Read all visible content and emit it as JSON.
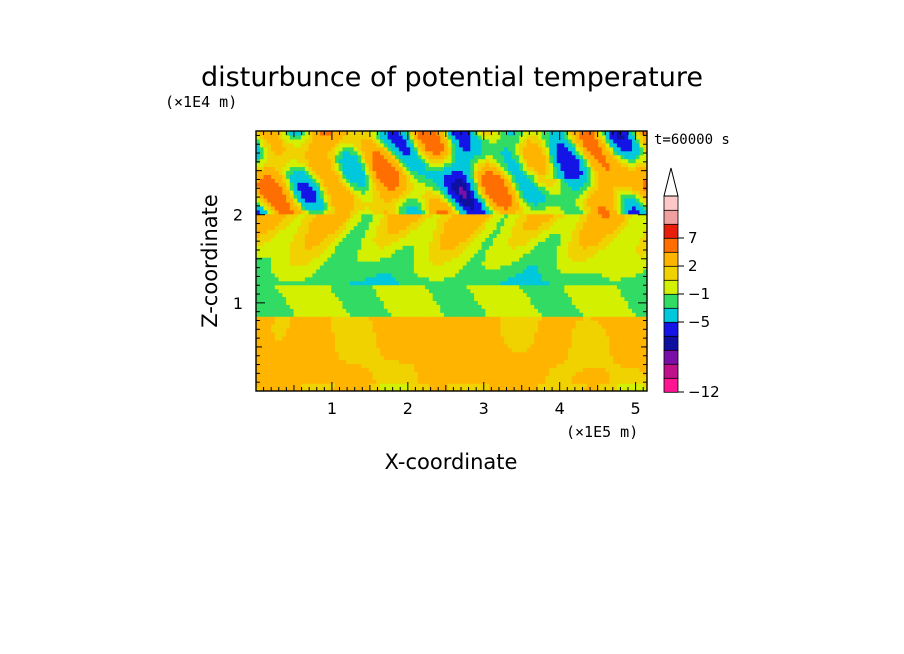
{
  "chart_data": {
    "type": "heatmap",
    "title": "disturbunce of potential temperature",
    "xlabel": "X-coordinate",
    "ylabel": "Z-coordinate",
    "x_unit": "(×1E5 m)",
    "y_unit": "(×1E4 m)",
    "time_label": "t=60000 s",
    "xlim": [
      0,
      5.15
    ],
    "ylim": [
      0,
      2.95
    ],
    "x_ticks": [
      "1",
      "2",
      "3",
      "4",
      "5"
    ],
    "y_ticks": [
      "1",
      "2"
    ],
    "colorbar": {
      "labels": [
        "7",
        "2",
        "−1",
        "−5",
        "−12"
      ],
      "colors": [
        "#ff1493",
        "#c0118c",
        "#7b10a8",
        "#1010a0",
        "#1414e6",
        "#00c8dc",
        "#32dc64",
        "#d2f000",
        "#f0d200",
        "#ffb400",
        "#ff6e00",
        "#e61e0a",
        "#f0a0a0",
        "#ffc8c8"
      ]
    },
    "field_description_rows": [
      {
        "z_range": [
          2.0,
          2.95
        ],
        "pattern": "wave",
        "values": [
          -5,
          7
        ]
      },
      {
        "z_range": [
          1.2,
          2.0
        ],
        "pattern": "mixed",
        "values": [
          -1,
          3
        ]
      },
      {
        "z_range": [
          0.85,
          1.2
        ],
        "pattern": "band",
        "values": [
          -1,
          1
        ]
      },
      {
        "z_range": [
          0.0,
          0.85
        ],
        "pattern": "band",
        "values": [
          1,
          4
        ]
      }
    ]
  }
}
